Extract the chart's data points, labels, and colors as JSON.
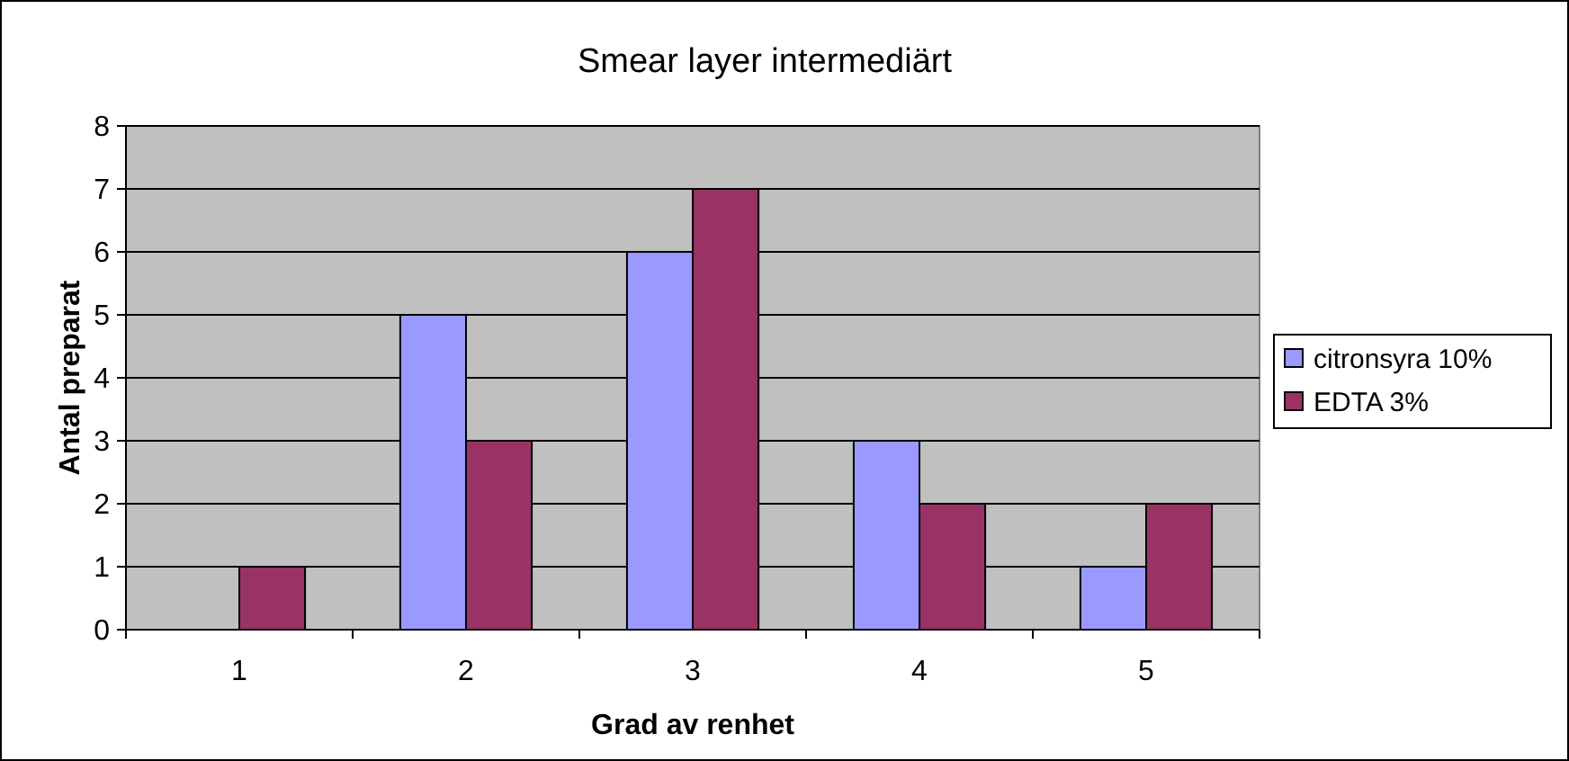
{
  "chart_data": {
    "type": "bar",
    "title": "Smear layer intermediärt",
    "xlabel": "Grad av renhet",
    "ylabel": "Antal preparat",
    "categories": [
      "1",
      "2",
      "3",
      "4",
      "5"
    ],
    "series": [
      {
        "name": "citronsyra 10%",
        "color": "#9999ff",
        "values": [
          0,
          5,
          6,
          3,
          1
        ]
      },
      {
        "name": "EDTA 3%",
        "color": "#993366",
        "values": [
          1,
          3,
          7,
          2,
          2
        ]
      }
    ],
    "ylim": [
      0,
      8
    ],
    "yticks": [
      0,
      1,
      2,
      3,
      4,
      5,
      6,
      7,
      8
    ],
    "grid": "y",
    "legend": "right"
  }
}
